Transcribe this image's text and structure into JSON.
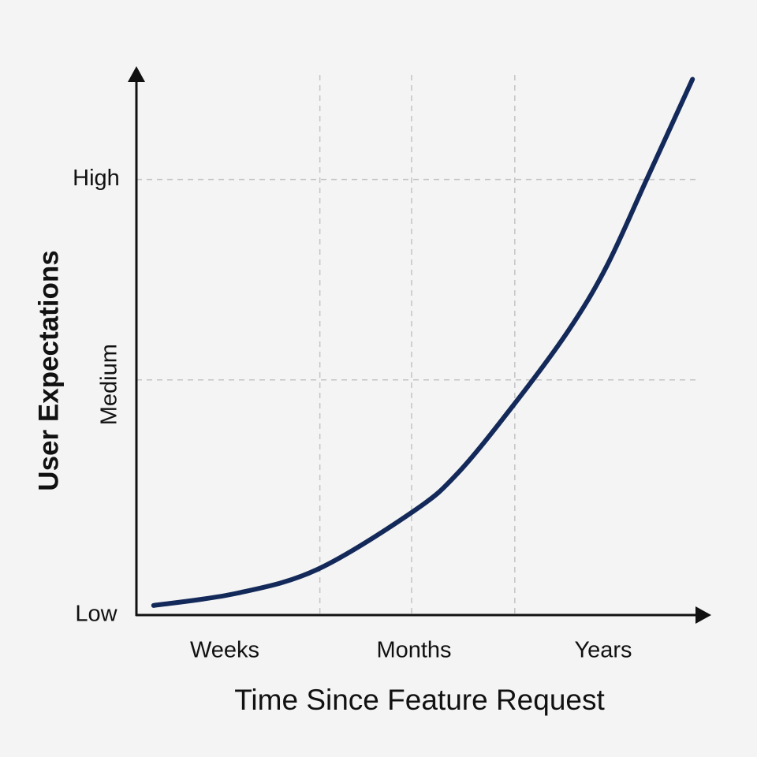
{
  "chart_data": {
    "type": "line",
    "x_label": "Time Since Feature Request",
    "y_label": "User Expectations",
    "categories": [
      "Weeks",
      "Months",
      "Years"
    ],
    "xlim": [
      0,
      100
    ],
    "xgrid": [
      32,
      48,
      66
    ],
    "ylim": [
      0,
      124
    ],
    "yticks": [
      {
        "value": 0,
        "label": "Low"
      },
      {
        "value": 54,
        "label": "Medium"
      },
      {
        "value": 100,
        "label": "High"
      }
    ],
    "grid": true,
    "x": [
      3,
      17.5,
      31.6,
      48.4,
      56,
      65.6,
      75.2,
      82,
      89,
      97
    ],
    "series": [
      {
        "color": "#13295a",
        "values": [
          2.2,
          5,
          10.5,
          23.9,
          32.5,
          47.9,
          65,
          80,
          100,
          123
        ]
      }
    ]
  }
}
